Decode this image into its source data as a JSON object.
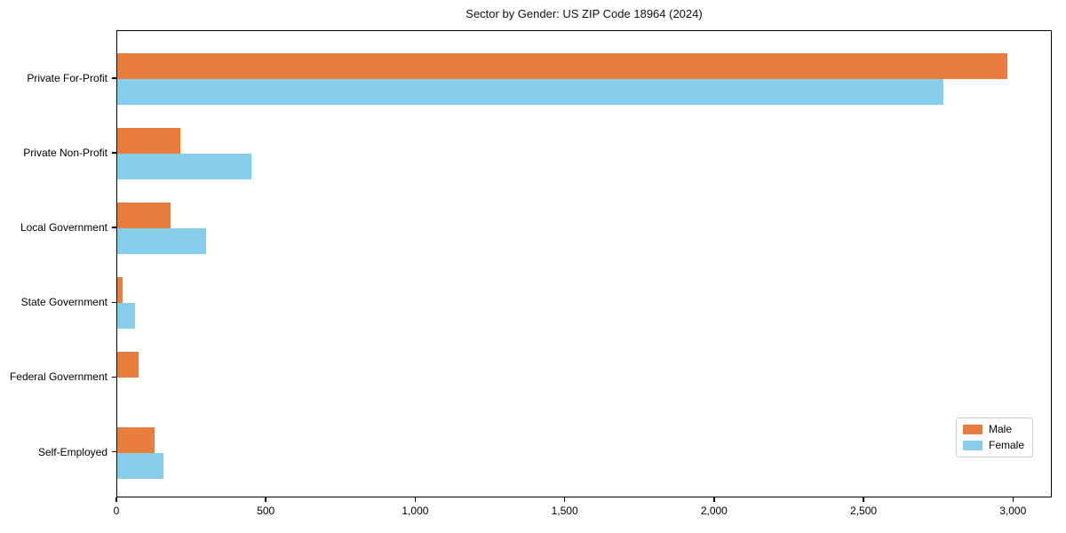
{
  "chart_data": {
    "type": "bar",
    "orientation": "horizontal",
    "title": "Sector by Gender: US ZIP Code 18964 (2024)",
    "categories": [
      "Private For-Profit",
      "Private Non-Profit",
      "Local Government",
      "State Government",
      "Federal Government",
      "Self-Employed"
    ],
    "series": [
      {
        "name": "Male",
        "color": "#e87d3e",
        "values": [
          2985,
          210,
          179,
          18,
          72,
          126
        ]
      },
      {
        "name": "Female",
        "color": "#87ceeb",
        "values": [
          2770,
          451,
          297,
          59,
          0,
          155
        ]
      }
    ],
    "xlabel": "",
    "ylabel": "",
    "xlim": [
      0,
      3130
    ],
    "xticks": [
      0,
      500,
      1000,
      1500,
      2000,
      2500,
      3000
    ],
    "xtick_labels": [
      "0",
      "500",
      "1,000",
      "1,500",
      "2,000",
      "2,500",
      "3,000"
    ],
    "grid": false,
    "legend_position": "lower right",
    "colors": {
      "male": "#e87d3e",
      "female": "#87ceeb",
      "spine": "#000000",
      "legend_border": "#cccccc",
      "background": "#ffffff"
    }
  }
}
